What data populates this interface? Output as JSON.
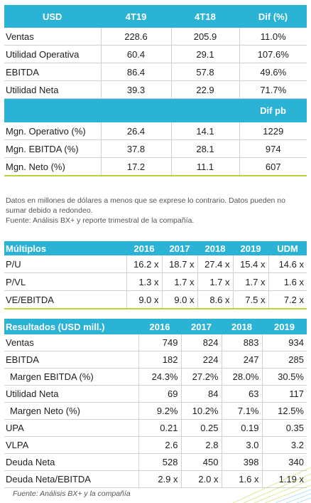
{
  "summary_table": {
    "headers": [
      "USD",
      "4T19",
      "4T18",
      "Dif (%)"
    ],
    "rows": [
      [
        "Ventas",
        "228.6",
        "205.9",
        "11.0%"
      ],
      [
        "Utilidad Operativa",
        "60.4",
        "29.1",
        "107.6%"
      ],
      [
        "EBITDA",
        "86.4",
        "57.8",
        "49.6%"
      ],
      [
        "Utilidad Neta",
        "39.3",
        "22.9",
        "71.7%"
      ]
    ],
    "subheader": "Dif pb",
    "margin_rows": [
      [
        "Mgn. Operativo (%)",
        "26.4",
        "14.1",
        "1229"
      ],
      [
        "Mgn. EBITDA (%)",
        "37.8",
        "28.1",
        "974"
      ],
      [
        "Mgn. Neto (%)",
        "17.2",
        "11.1",
        "607"
      ]
    ]
  },
  "notes": {
    "line1": "Datos en millones de dólares a menos que se exprese lo contrario. Datos pueden no sumar debido a redondeo.",
    "line2": "Fuente: Análisis BX+ y reporte trimestral de la compañía."
  },
  "multiples_table": {
    "headers": [
      "Múltiplos",
      "2016",
      "2017",
      "2018",
      "2019",
      "UDM"
    ],
    "rows": [
      [
        "P/U",
        "16.2 x",
        "18.7 x",
        "27.4 x",
        "15.4 x",
        "14.6 x"
      ],
      [
        "P/VL",
        "1.3 x",
        "1.7 x",
        "1.7 x",
        "1.7 x",
        "1.6 x"
      ],
      [
        "VE/EBITDA",
        "9.0 x",
        "9.0 x",
        "8.6 x",
        "7.5 x",
        "7.2 x"
      ]
    ]
  },
  "results_table": {
    "headers": [
      "Resultados (USD mill.)",
      "2016",
      "2017",
      "2018",
      "2019"
    ],
    "rows": [
      [
        "Ventas",
        "749",
        "824",
        "883",
        "934"
      ],
      [
        "EBITDA",
        "182",
        "224",
        "247",
        "285"
      ],
      [
        "Margen EBITDA (%)",
        "24.3%",
        "27.2%",
        "28.0%",
        "30.5%"
      ],
      [
        "Utilidad Neta",
        "69",
        "84",
        "63",
        "117"
      ],
      [
        "Margen Neto (%)",
        "9.2%",
        "10.2%",
        "7.1%",
        "12.5%"
      ],
      [
        "UPA",
        "0.21",
        "0.25",
        "0.19",
        "0.35"
      ],
      [
        "VLPA",
        "2.6",
        "2.8",
        "3.0",
        "3.2"
      ],
      [
        "Deuda Neta",
        "528",
        "450",
        "398",
        "340"
      ],
      [
        "Deuda Neta/EBITDA",
        "2.9 x",
        "2.0 x",
        "1.6 x",
        "1.19 x"
      ]
    ]
  },
  "source_footer": "Fuente: Análisis BX+ y la compañía",
  "colors": {
    "header": "#2bb3d6",
    "accent_line": "#b9d438",
    "grid": "#cfd3d6"
  }
}
